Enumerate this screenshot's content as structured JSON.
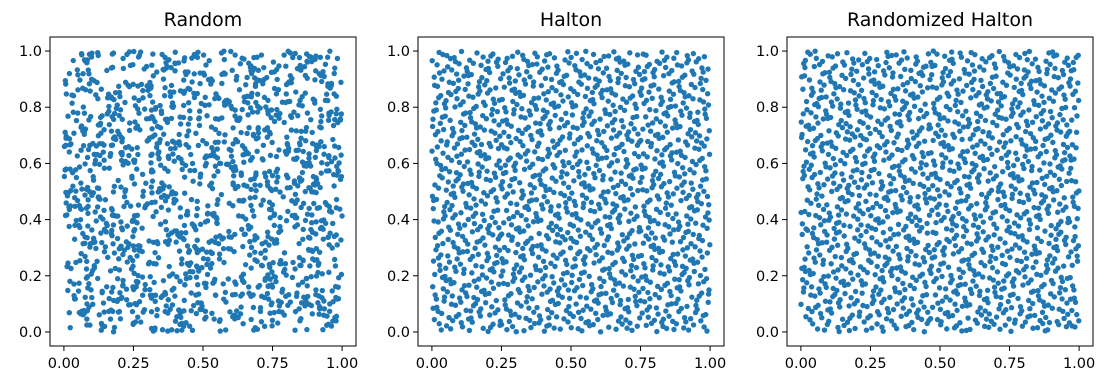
{
  "chart_data": [
    {
      "type": "scatter",
      "title": "Random",
      "xlabel": "",
      "ylabel": "",
      "xlim": [
        -0.05,
        1.05
      ],
      "ylim": [
        -0.05,
        1.05
      ],
      "xticks": [
        "0.00",
        "0.25",
        "0.50",
        "0.75",
        "1.00"
      ],
      "xtick_values": [
        0,
        0.25,
        0.5,
        0.75,
        1.0
      ],
      "yticks": [
        "0.0",
        "0.2",
        "0.4",
        "0.6",
        "0.8",
        "1.0"
      ],
      "ytick_values": [
        0,
        0.2,
        0.4,
        0.6,
        0.8,
        1.0
      ],
      "grid": false,
      "marker_color": "#1f77b4",
      "series": [
        {
          "generator": "uniform-random",
          "n_points": 1500,
          "x_range": [
            0,
            1
          ],
          "y_range": [
            0,
            1
          ]
        }
      ]
    },
    {
      "type": "scatter",
      "title": "Halton",
      "xlabel": "",
      "ylabel": "",
      "xlim": [
        -0.05,
        1.05
      ],
      "ylim": [
        -0.05,
        1.05
      ],
      "xticks": [
        "0.00",
        "0.25",
        "0.50",
        "0.75",
        "1.00"
      ],
      "xtick_values": [
        0,
        0.25,
        0.5,
        0.75,
        1.0
      ],
      "yticks": [
        "0.0",
        "0.2",
        "0.4",
        "0.6",
        "0.8",
        "1.0"
      ],
      "ytick_values": [
        0,
        0.2,
        0.4,
        0.6,
        0.8,
        1.0
      ],
      "grid": false,
      "marker_color": "#1f77b4",
      "series": [
        {
          "generator": "halton",
          "bases": [
            2,
            3
          ],
          "n_points": 1500,
          "x_range": [
            0,
            1
          ],
          "y_range": [
            0,
            1
          ]
        }
      ]
    },
    {
      "type": "scatter",
      "title": "Randomized Halton",
      "xlabel": "",
      "ylabel": "",
      "xlim": [
        -0.05,
        1.05
      ],
      "ylim": [
        -0.05,
        1.05
      ],
      "xticks": [
        "0.00",
        "0.25",
        "0.50",
        "0.75",
        "1.00"
      ],
      "xtick_values": [
        0,
        0.25,
        0.5,
        0.75,
        1.0
      ],
      "yticks": [
        "0.0",
        "0.2",
        "0.4",
        "0.6",
        "0.8",
        "1.0"
      ],
      "ytick_values": [
        0,
        0.2,
        0.4,
        0.6,
        0.8,
        1.0
      ],
      "grid": false,
      "marker_color": "#1f77b4",
      "series": [
        {
          "generator": "randomized-halton",
          "bases": [
            2,
            3
          ],
          "n_points": 1500,
          "x_range": [
            0,
            1
          ],
          "y_range": [
            0,
            1
          ]
        }
      ]
    }
  ]
}
